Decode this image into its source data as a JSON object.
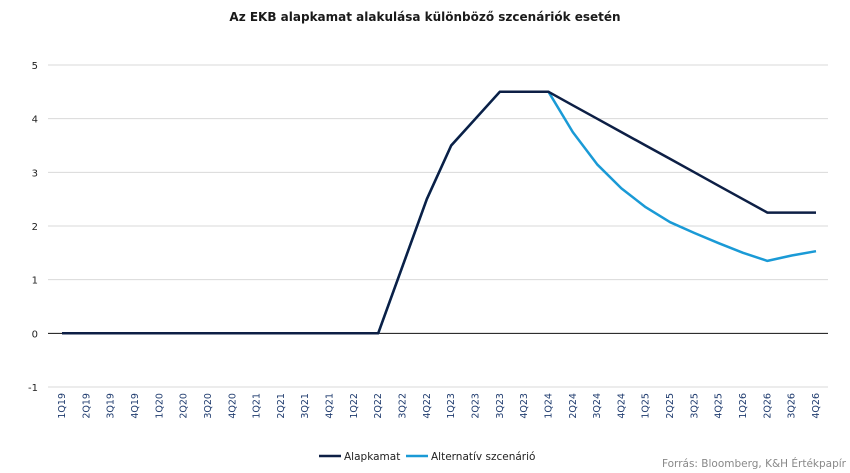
{
  "chart_data": {
    "type": "line",
    "title": "Az EKB alapkamat alakulása különböző szcenáriók esetén",
    "categories": [
      "1Q19",
      "2Q19",
      "3Q19",
      "4Q19",
      "1Q20",
      "2Q20",
      "3Q20",
      "4Q20",
      "1Q21",
      "2Q21",
      "3Q21",
      "4Q21",
      "1Q22",
      "2Q22",
      "3Q22",
      "4Q22",
      "1Q23",
      "2Q23",
      "3Q23",
      "4Q23",
      "1Q24",
      "2Q24",
      "3Q24",
      "4Q24",
      "1Q25",
      "2Q25",
      "3Q25",
      "4Q25",
      "1Q26",
      "2Q26",
      "3Q26",
      "4Q26"
    ],
    "series": [
      {
        "name": "Alapkamat",
        "color": "#0d1f45",
        "values": [
          0,
          0,
          0,
          0,
          0,
          0,
          0,
          0,
          0,
          0,
          0,
          0,
          0,
          0,
          1.25,
          2.5,
          3.5,
          4.0,
          4.5,
          4.5,
          4.5,
          4.25,
          4.0,
          3.75,
          3.5,
          3.25,
          3.0,
          2.75,
          2.5,
          2.25,
          2.25,
          2.25
        ]
      },
      {
        "name": "Alternatív szcenárió",
        "color": "#1a9ad6",
        "values": [
          0,
          0,
          0,
          0,
          0,
          0,
          0,
          0,
          0,
          0,
          0,
          0,
          0,
          0,
          1.25,
          2.5,
          3.5,
          4.0,
          4.5,
          4.5,
          4.5,
          3.75,
          3.15,
          2.7,
          2.35,
          2.07,
          1.87,
          1.68,
          1.5,
          1.35,
          1.45,
          1.53
        ]
      }
    ],
    "ylim": [
      -1,
      5
    ],
    "yticks": [
      "-1",
      "0",
      "1",
      "2",
      "3",
      "4",
      "5"
    ],
    "grid": true,
    "legend": "bottom",
    "xlabel": "",
    "ylabel": ""
  },
  "source": "Forrás: Bloomberg,  K&H Értékpapír"
}
